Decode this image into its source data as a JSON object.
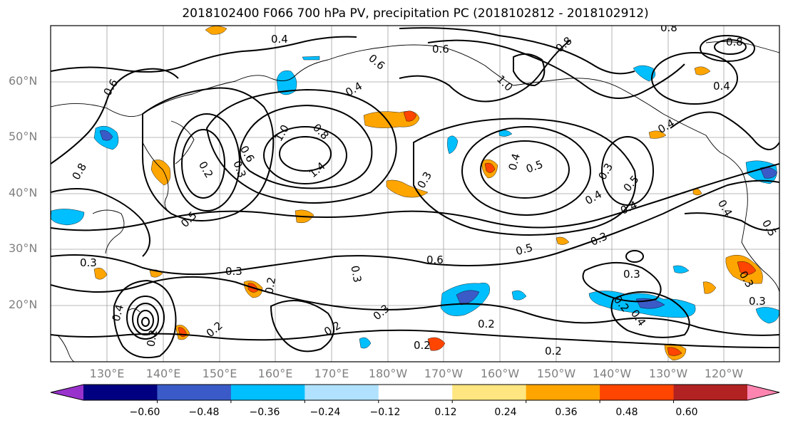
{
  "title": "2018102400 F066 700 hPa PV, precipitation PC (2018102812 - 2018102912)",
  "lat_labels": [
    "60°N",
    "50°N",
    "40°N",
    "30°N",
    "20°N"
  ],
  "lon_labels": [
    "130°E",
    "140°E",
    "150°E",
    "160°E",
    "170°E",
    "180°W",
    "170°W",
    "160°W",
    "150°W",
    "140°W",
    "130°W",
    "120°W"
  ],
  "contour_labels": [
    "0.4",
    "0.6",
    "0.8",
    "0.8",
    "1.0",
    "0.6",
    "0.8",
    "0.4",
    "0.3",
    "0.2",
    "0.5",
    "1.0",
    "1.4",
    "0.6",
    "0.8",
    "0.3",
    "0.4",
    "0.5",
    "0.3",
    "0.4",
    "0.5",
    "0.4",
    "0.3",
    "0.5",
    "0.6",
    "0.3",
    "0.3",
    "0.3",
    "0.2",
    "0.3",
    "0.2",
    "0.4",
    "0.2",
    "0.2",
    "0.2",
    "0.2",
    "0.3",
    "0.2",
    "0.4",
    "0.3",
    "0.2",
    "0.4",
    "0.3",
    "0.4",
    "0.5",
    "0.6",
    "0.8",
    "0.4"
  ],
  "colorbar": {
    "ticks": [
      "−0.60",
      "−0.48",
      "−0.36",
      "−0.24",
      "−0.12",
      "0.12",
      "0.24",
      "0.36",
      "0.48",
      "0.60"
    ],
    "colors": [
      "#9932cc",
      "#000080",
      "#3a5bc7",
      "#00bfff",
      "#b0e2ff",
      "#ffffff",
      "#ffe680",
      "#ffa500",
      "#ff4500",
      "#b22222",
      "#ff85b0"
    ]
  },
  "anomaly_palette": {
    "orange": "#ffa500",
    "red_orange": "#ff4500",
    "light_blue": "#b0e2ff",
    "sky_blue": "#00bfff",
    "mid_blue": "#3a5bc7"
  }
}
